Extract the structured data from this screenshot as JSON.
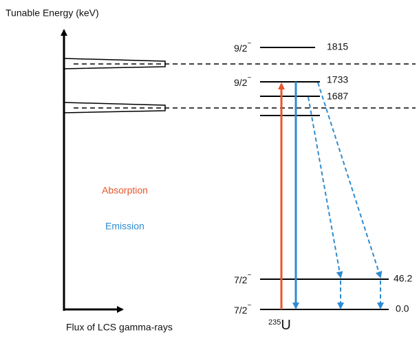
{
  "axis_labels": {
    "y": "Tunable Energy (keV)",
    "x": "Flux of LCS gamma-rays"
  },
  "legend": {
    "absorption": "Absorption",
    "emission": "Emission"
  },
  "levels": [
    {
      "spin": "9/2",
      "parity": "−",
      "energy": "1815"
    },
    {
      "spin": "9/2",
      "parity": "−",
      "energy": "1733"
    },
    {
      "energy": "1687"
    },
    {
      "spin": "7/2",
      "parity": "−",
      "energy": "46.2"
    },
    {
      "spin": "7/2",
      "parity": "−",
      "energy": "0.0"
    }
  ],
  "nucleus": {
    "mass": "235",
    "symbol": "U"
  }
}
